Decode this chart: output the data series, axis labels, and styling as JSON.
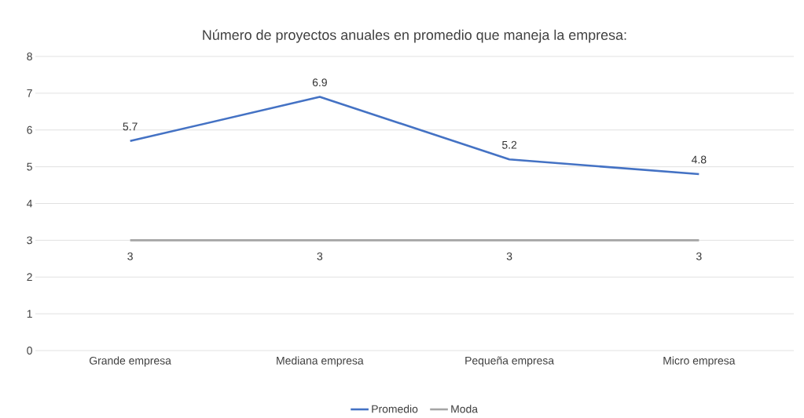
{
  "chart_data": {
    "type": "line",
    "title": "Número de proyectos anuales en promedio que maneja la empresa:",
    "categories": [
      "Grande empresa",
      "Mediana empresa",
      "Pequeña empresa",
      "Micro empresa"
    ],
    "series": [
      {
        "name": "Promedio",
        "color": "#4472c4",
        "values": [
          5.7,
          6.9,
          5.2,
          4.8
        ]
      },
      {
        "name": "Moda",
        "color": "#a5a5a5",
        "values": [
          3,
          3,
          3,
          3
        ]
      }
    ],
    "ylim": [
      0,
      8
    ],
    "yticks": [
      0,
      1,
      2,
      3,
      4,
      5,
      6,
      7,
      8
    ],
    "grid": "y",
    "legend": "bottom",
    "data_labels": true,
    "marker": "none",
    "line_style": "solid"
  }
}
